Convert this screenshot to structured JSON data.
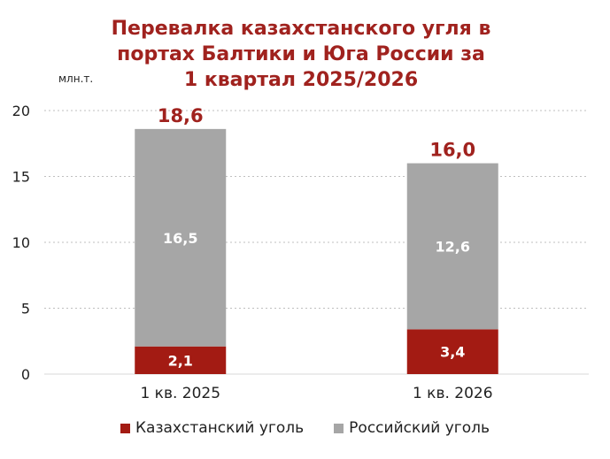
{
  "chart_data": {
    "type": "bar",
    "stacked": true,
    "title": [
      "Перевалка казахстанского угля в",
      "портах Балтики и Юга России за",
      "1 квартал 2025/2026"
    ],
    "unit_label": "млн.т.",
    "categories": [
      "1 кв. 2025",
      "1 кв. 2026"
    ],
    "series": [
      {
        "name": "Казахстанский уголь",
        "values": [
          2.1,
          3.4
        ],
        "labels": [
          "2,1",
          "3,4"
        ],
        "color": "#a31b13"
      },
      {
        "name": "Российский уголь",
        "values": [
          16.5,
          12.6
        ],
        "labels": [
          "16,5",
          "12,6"
        ],
        "color": "#a6a6a6"
      }
    ],
    "totals": [
      18.6,
      16.0
    ],
    "total_labels": [
      "18,6",
      "16,0"
    ],
    "yticks": [
      "0",
      "5",
      "10",
      "15",
      "20"
    ],
    "ylim": [
      0,
      20
    ],
    "grid": true,
    "legend_position": "bottom",
    "total_label_color": "#a0221e"
  }
}
